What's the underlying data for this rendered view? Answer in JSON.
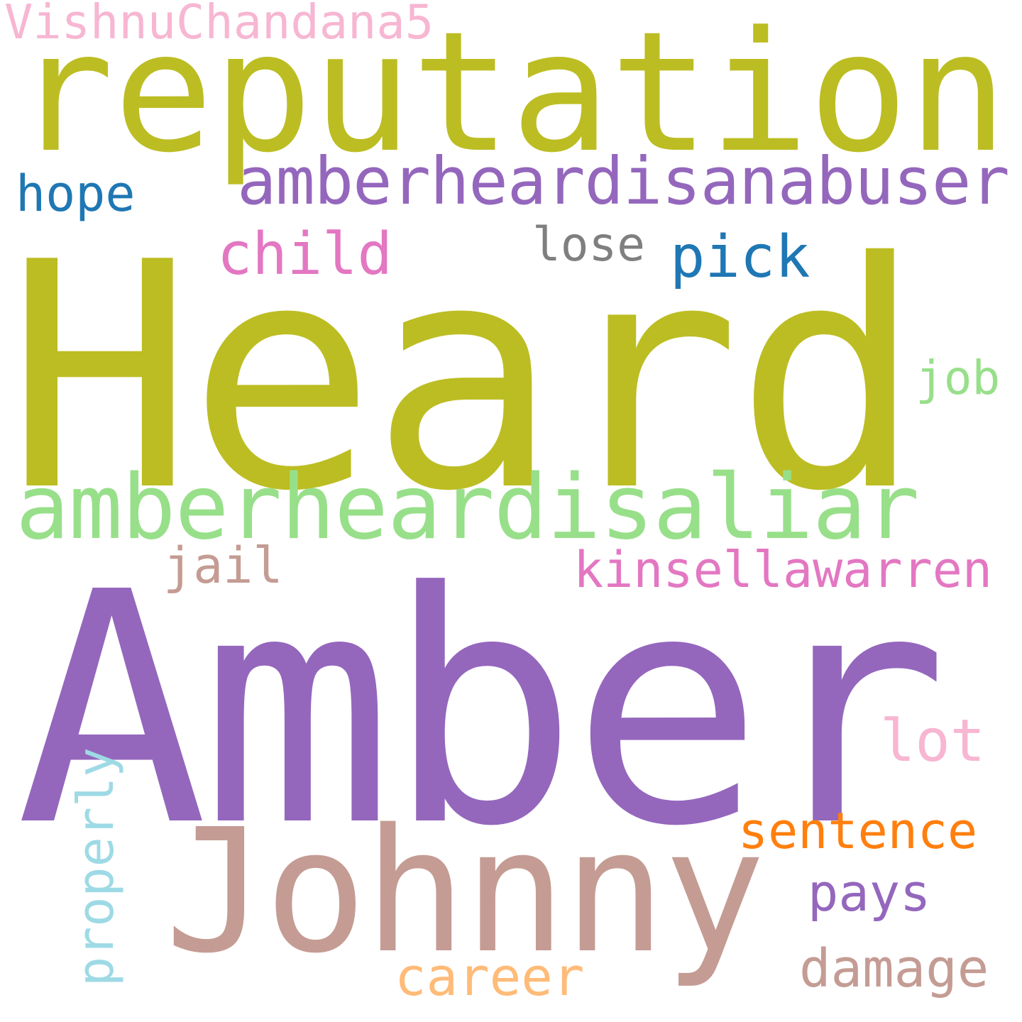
{
  "words": {
    "heard": {
      "text": "Heard",
      "color": "#bcbd22"
    },
    "amber": {
      "text": "Amber",
      "color": "#9467bd"
    },
    "reputation": {
      "text": "reputation",
      "color": "#bcbd22"
    },
    "johnny": {
      "text": "Johnny",
      "color": "#c49c94"
    },
    "aliar": {
      "text": "amberheardisaliar",
      "color": "#98df8a"
    },
    "abuser": {
      "text": "amberheardisanabuser",
      "color": "#9467bd"
    },
    "vishnu": {
      "text": "VishnuChandana5",
      "color": "#f7b6d2"
    },
    "hope": {
      "text": "hope",
      "color": "#1f77b4"
    },
    "child": {
      "text": "child",
      "color": "#e377c2"
    },
    "lose": {
      "text": "lose",
      "color": "#7f7f7f"
    },
    "pick": {
      "text": "pick",
      "color": "#1f77b4"
    },
    "job": {
      "text": "job",
      "color": "#98df8a"
    },
    "jail": {
      "text": "jail",
      "color": "#c49c94"
    },
    "kinsella": {
      "text": "kinsellawarren",
      "color": "#e377c2"
    },
    "lot": {
      "text": "lot",
      "color": "#f7b6d2"
    },
    "sentence": {
      "text": "sentence",
      "color": "#ff7f0e"
    },
    "pays": {
      "text": "pays",
      "color": "#9467bd"
    },
    "damage": {
      "text": "damage",
      "color": "#c49c94"
    },
    "career": {
      "text": "career",
      "color": "#ffbb78"
    },
    "properly": {
      "text": "properly",
      "color": "#9edae5"
    }
  },
  "background": "#ffffff"
}
